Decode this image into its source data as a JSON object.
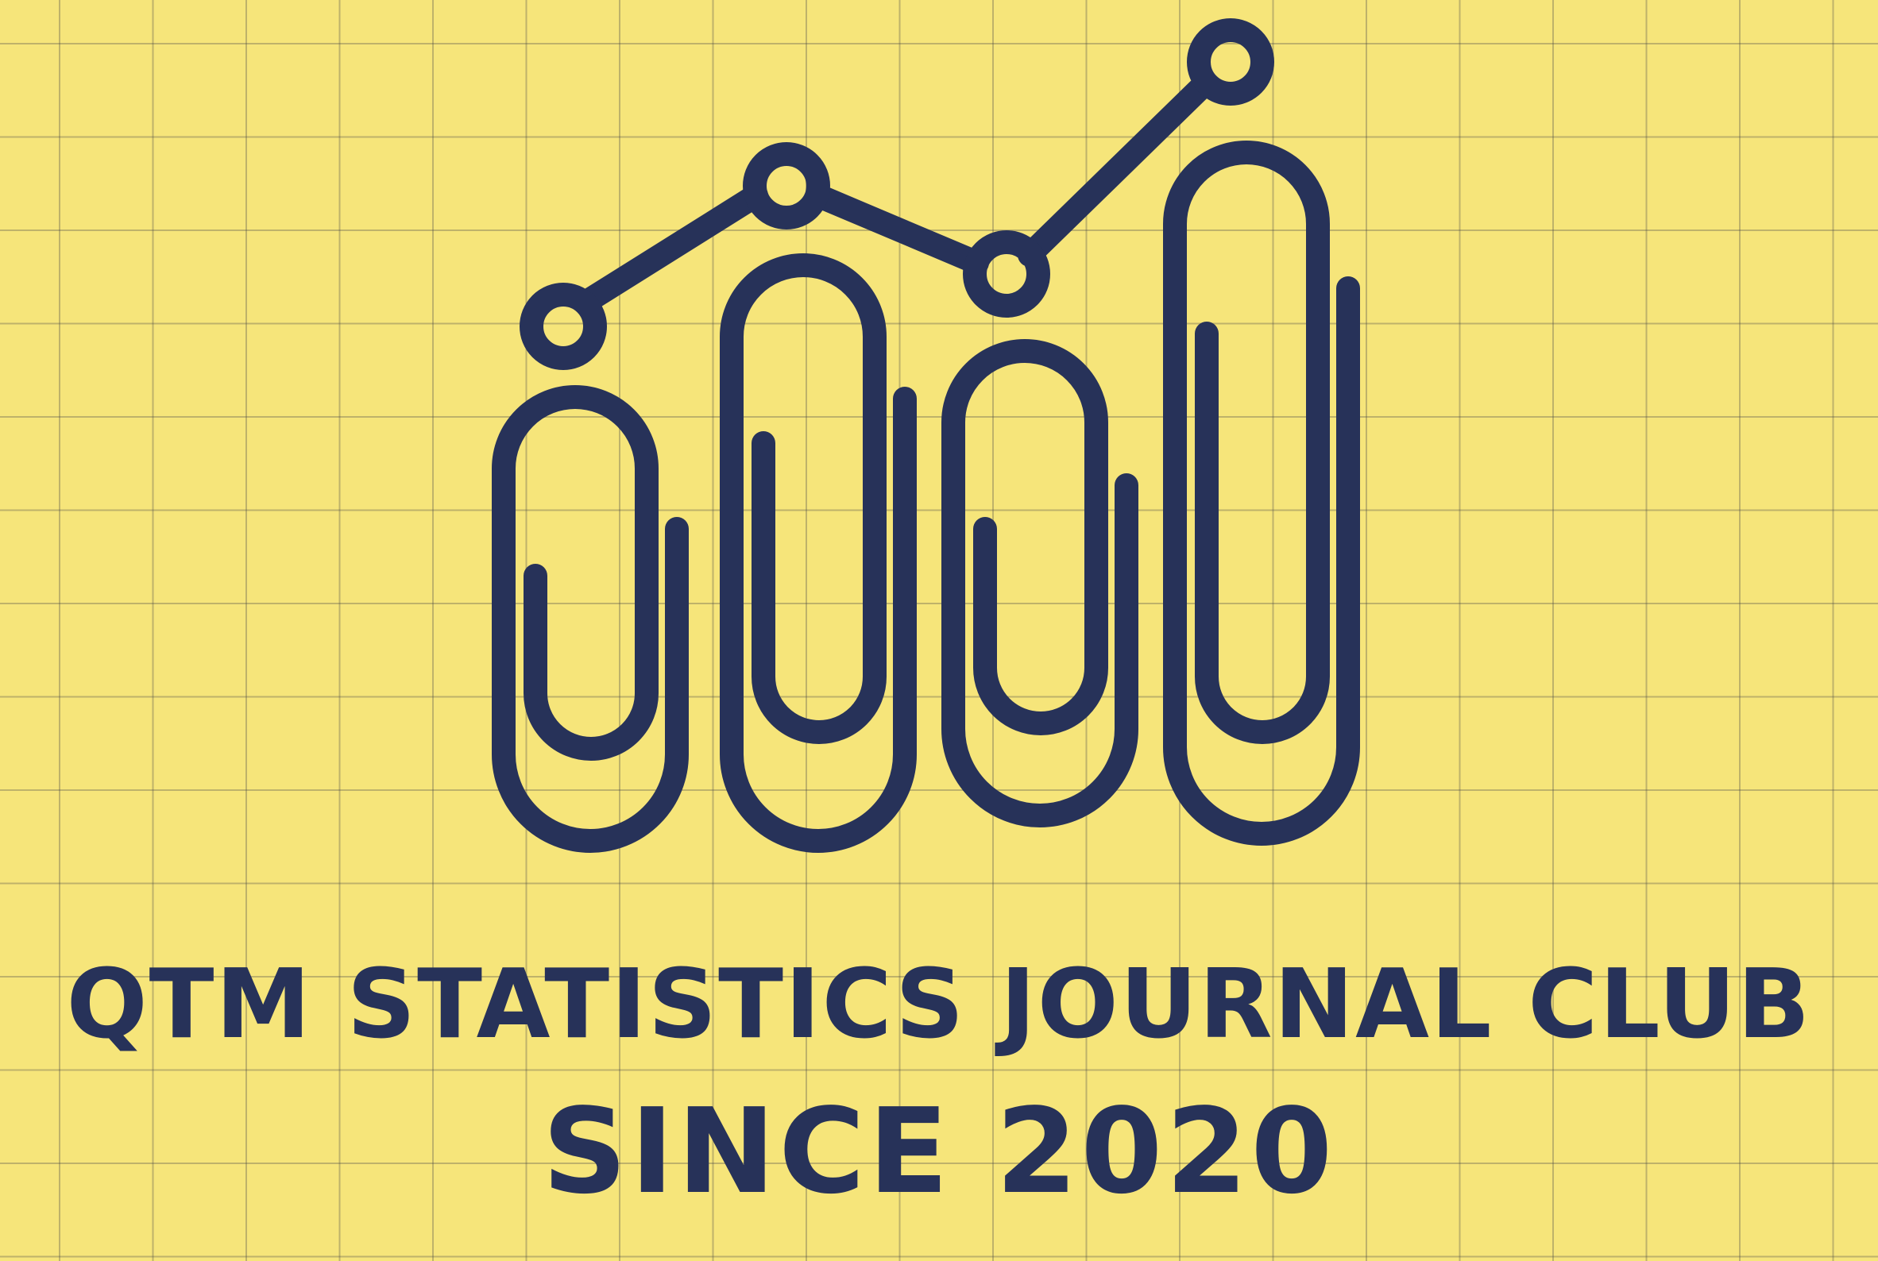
{
  "colors": {
    "background": "#f6e57a",
    "grid_line": "#5a5a5a",
    "ink": "#273259"
  },
  "logo": {
    "icon": "paperclip-chart-icon",
    "description_icons": [
      "paperclip-bar-icon",
      "trend-line-icon",
      "data-point-icon"
    ]
  },
  "heading": {
    "title": "QTM STATISTICS JOURNAL CLUB",
    "subtitle": "SINCE 2020"
  }
}
